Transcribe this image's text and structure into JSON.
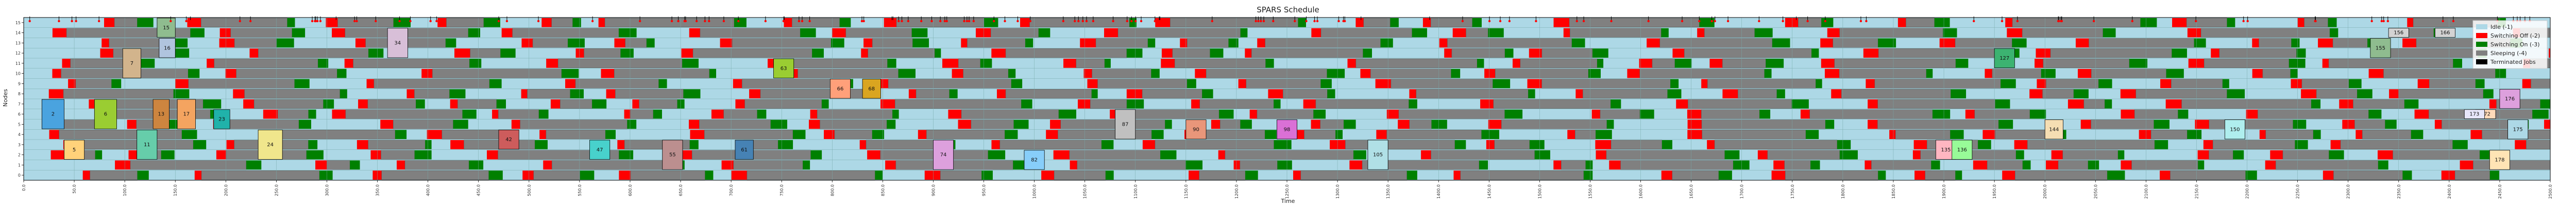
{
  "chart_data": {
    "type": "gantt",
    "title": "SPARS Schedule",
    "xlabel": "Time",
    "ylabel": "Nodes",
    "xlim": [
      0,
      2500
    ],
    "ylim": [
      0,
      16
    ],
    "nodes": [
      "0",
      "1",
      "2",
      "3",
      "4",
      "5",
      "6",
      "7",
      "8",
      "9",
      "10",
      "11",
      "12",
      "13",
      "14",
      "15"
    ],
    "x_ticks": [
      "0.0",
      "50.0",
      "100.0",
      "150.0",
      "200.0",
      "250.0",
      "300.0",
      "350.0",
      "400.0",
      "450.0",
      "500.0",
      "550.0",
      "600.0",
      "650.0",
      "700.0",
      "750.0",
      "800.0",
      "850.0",
      "900.0",
      "950.0",
      "1000.0",
      "1050.0",
      "1100.0",
      "1150.0",
      "1200.0",
      "1250.0",
      "1300.0",
      "1350.0",
      "1400.0",
      "1450.0",
      "1500.0",
      "1550.0",
      "1600.0",
      "1650.0",
      "1700.0",
      "1750.0",
      "1800.0",
      "1850.0",
      "1900.0",
      "1950.0",
      "2000.0",
      "2050.0",
      "2100.0",
      "2150.0",
      "2200.0",
      "2250.0",
      "2300.0",
      "2350.0",
      "2400.0",
      "2450.0",
      "2500.0"
    ],
    "legend": [
      {
        "label": "Idle (-1)",
        "color": "#add8e6"
      },
      {
        "label": "Switching Off (-2)",
        "color": "#ff0000"
      },
      {
        "label": "Switching On (-3)",
        "color": "#008000"
      },
      {
        "label": "Sleeping (-4)",
        "color": "#808080"
      },
      {
        "label": "Terminated Jobs",
        "color": "#000000"
      }
    ],
    "legend_position": "top-right",
    "grid": true,
    "jobs": [
      {
        "id": "2",
        "start": 18,
        "end": 40,
        "nodes": [
          5,
          6,
          7
        ],
        "color": "#4aa3df"
      },
      {
        "id": "5",
        "start": 40,
        "end": 60,
        "nodes": [
          2,
          3
        ],
        "color": "#ffd27a"
      },
      {
        "id": "6",
        "start": 70,
        "end": 92,
        "nodes": [
          5,
          6,
          7
        ],
        "color": "#9acd32"
      },
      {
        "id": "7",
        "start": 98,
        "end": 116,
        "nodes": [
          10,
          11,
          12
        ],
        "color": "#d2b48c"
      },
      {
        "id": "11",
        "start": 112,
        "end": 132,
        "nodes": [
          2,
          3,
          4
        ],
        "color": "#66cdaa"
      },
      {
        "id": "13",
        "start": 128,
        "end": 144,
        "nodes": [
          5,
          6,
          7
        ],
        "color": "#cd853f"
      },
      {
        "id": "15",
        "start": 132,
        "end": 150,
        "nodes": [
          14,
          15
        ],
        "color": "#8fbc8f"
      },
      {
        "id": "16",
        "start": 134,
        "end": 150,
        "nodes": [
          12,
          13
        ],
        "color": "#b0c4de"
      },
      {
        "id": "17",
        "start": 152,
        "end": 170,
        "nodes": [
          5,
          6,
          7
        ],
        "color": "#f4a460"
      },
      {
        "id": "23",
        "start": 188,
        "end": 204,
        "nodes": [
          5,
          6
        ],
        "color": "#20b2aa"
      },
      {
        "id": "24",
        "start": 232,
        "end": 256,
        "nodes": [
          2,
          3,
          4
        ],
        "color": "#f0e68c"
      },
      {
        "id": "34",
        "start": 360,
        "end": 380,
        "nodes": [
          12,
          13,
          14
        ],
        "color": "#d8bfd8"
      },
      {
        "id": "42",
        "start": 470,
        "end": 490,
        "nodes": [
          3,
          4
        ],
        "color": "#cd5c5c"
      },
      {
        "id": "47",
        "start": 560,
        "end": 580,
        "nodes": [
          2,
          3
        ],
        "color": "#48d1cc"
      },
      {
        "id": "55",
        "start": 632,
        "end": 652,
        "nodes": [
          1,
          2,
          3
        ],
        "color": "#bc8f8f"
      },
      {
        "id": "61",
        "start": 704,
        "end": 722,
        "nodes": [
          2,
          3
        ],
        "color": "#4682b4"
      },
      {
        "id": "63",
        "start": 742,
        "end": 762,
        "nodes": [
          10,
          11
        ],
        "color": "#9acd32"
      },
      {
        "id": "66",
        "start": 798,
        "end": 818,
        "nodes": [
          8,
          9
        ],
        "color": "#ffa07a"
      },
      {
        "id": "68",
        "start": 830,
        "end": 848,
        "nodes": [
          8,
          9
        ],
        "color": "#daa520"
      },
      {
        "id": "74",
        "start": 900,
        "end": 920,
        "nodes": [
          1,
          2,
          3
        ],
        "color": "#dda0dd"
      },
      {
        "id": "82",
        "start": 990,
        "end": 1010,
        "nodes": [
          1,
          2
        ],
        "color": "#87cefa"
      },
      {
        "id": "87",
        "start": 1080,
        "end": 1100,
        "nodes": [
          4,
          5,
          6
        ],
        "color": "#c0c0c0"
      },
      {
        "id": "90",
        "start": 1150,
        "end": 1170,
        "nodes": [
          4,
          5
        ],
        "color": "#e9967a"
      },
      {
        "id": "98",
        "start": 1240,
        "end": 1260,
        "nodes": [
          4,
          5
        ],
        "color": "#da70d6"
      },
      {
        "id": "105",
        "start": 1330,
        "end": 1350,
        "nodes": [
          1,
          2,
          3
        ],
        "color": "#b0e0e6"
      },
      {
        "id": "127",
        "start": 1950,
        "end": 1970,
        "nodes": [
          11,
          12
        ],
        "color": "#3cb371"
      },
      {
        "id": "135",
        "start": 1892,
        "end": 1912,
        "nodes": [
          2,
          3
        ],
        "color": "#ffb6c1"
      },
      {
        "id": "136",
        "start": 1908,
        "end": 1928,
        "nodes": [
          2,
          3
        ],
        "color": "#98fb98"
      },
      {
        "id": "144",
        "start": 2000,
        "end": 2018,
        "nodes": [
          4,
          5
        ],
        "color": "#f5deb3"
      },
      {
        "id": "150",
        "start": 2178,
        "end": 2198,
        "nodes": [
          4,
          5
        ],
        "color": "#afeeee"
      },
      {
        "id": "155",
        "start": 2322,
        "end": 2342,
        "nodes": [
          12,
          13
        ],
        "color": "#8fbc8f"
      },
      {
        "id": "156",
        "start": 2340,
        "end": 2360,
        "nodes": [
          14
        ],
        "color": "#d3d3d3"
      },
      {
        "id": "166",
        "start": 2386,
        "end": 2406,
        "nodes": [
          14
        ],
        "color": "#d3d3d3"
      },
      {
        "id": "172",
        "start": 2426,
        "end": 2446,
        "nodes": [
          6
        ],
        "color": "#ffdab9"
      },
      {
        "id": "173",
        "start": 2415,
        "end": 2435,
        "nodes": [
          6
        ],
        "color": "#e6e6fa"
      },
      {
        "id": "175",
        "start": 2458,
        "end": 2478,
        "nodes": [
          4,
          5
        ],
        "color": "#add8e6"
      },
      {
        "id": "176",
        "start": 2450,
        "end": 2470,
        "nodes": [
          7,
          8
        ],
        "color": "#dda0dd"
      },
      {
        "id": "178",
        "start": 2440,
        "end": 2460,
        "nodes": [
          1,
          2
        ],
        "color": "#ffe4b5"
      }
    ]
  }
}
